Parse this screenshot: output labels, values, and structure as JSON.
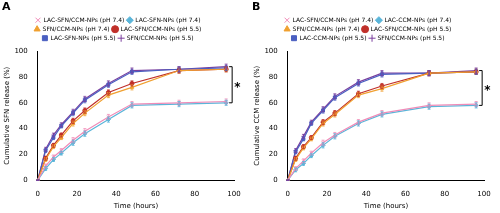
{
  "chart_data": [
    {
      "type": "line",
      "title": "A",
      "x_label": "Time (hours)",
      "y_label": "Cumulative SFN release (%)",
      "x": [
        0,
        4,
        8,
        12,
        18,
        24,
        36,
        48,
        72,
        96
      ],
      "xlim": [
        0,
        100
      ],
      "xticks": [
        0,
        20,
        40,
        60,
        80,
        100
      ],
      "ylim": [
        0,
        100
      ],
      "yticks": [
        0,
        20,
        40,
        60,
        80,
        100
      ],
      "grid": false,
      "legend": "top",
      "annotations": [
        {
          "text": "*"
        }
      ],
      "series": [
        {
          "name": "LAC-SFN/CCM-NPs (pH 7.4)",
          "color": "#f08cb8",
          "marker": "crossRot",
          "values": [
            0,
            11,
            18,
            23,
            31,
            38,
            49,
            59,
            60,
            61
          ],
          "errors": [
            0,
            1.5,
            1.5,
            1.5,
            2,
            2,
            2,
            2,
            2,
            2
          ]
        },
        {
          "name": "LAC-SFN-NPs (pH 7.4)",
          "color": "#5bb5d9",
          "marker": "rectRot",
          "values": [
            0,
            9,
            16,
            21,
            29,
            36,
            47,
            58,
            59,
            60
          ],
          "errors": [
            0,
            1.5,
            1.5,
            1.5,
            2,
            2,
            2,
            2,
            2,
            2
          ]
        },
        {
          "name": "SFN/CCM-NPs (pH 7.4)",
          "color": "#f0a030",
          "marker": "triangle",
          "values": [
            0,
            16,
            26,
            33,
            44,
            52,
            66,
            72,
            85,
            86
          ],
          "errors": [
            0,
            1.5,
            1.5,
            1.5,
            2,
            2,
            2,
            2,
            2,
            2
          ]
        },
        {
          "name": "LAC-SFN/CCM-NPs (pH 5.5)",
          "color": "#c0302a",
          "marker": "circle",
          "values": [
            0,
            17,
            27,
            35,
            46,
            54,
            68,
            75,
            85,
            86
          ],
          "errors": [
            0,
            1.5,
            1.5,
            1.5,
            2,
            2,
            2,
            2,
            2,
            2
          ]
        },
        {
          "name": "LAC-SFN-NPs (pH 5.5)",
          "color": "#4a5fc1",
          "marker": "rect",
          "values": [
            0,
            23,
            33,
            42,
            52,
            62,
            74,
            84,
            86,
            87
          ],
          "errors": [
            0,
            1.5,
            1.5,
            1.5,
            2,
            2,
            2,
            2,
            2,
            2
          ]
        },
        {
          "name": "SFN/CCM-NPs (pH 5.5)",
          "color": "#7b3f9e",
          "marker": "cross",
          "values": [
            0,
            24,
            35,
            43,
            53,
            63,
            75,
            85,
            86,
            88
          ],
          "errors": [
            0,
            1.5,
            1.5,
            1.5,
            2,
            2,
            2,
            2,
            2,
            2
          ]
        }
      ]
    },
    {
      "type": "line",
      "title": "B",
      "x_label": "Time (hours)",
      "y_label": "Cumulative CCM release (%)",
      "x": [
        0,
        4,
        8,
        12,
        18,
        24,
        36,
        48,
        72,
        96
      ],
      "xlim": [
        0,
        100
      ],
      "xticks": [
        0,
        20,
        40,
        60,
        80,
        100
      ],
      "ylim": [
        0,
        100
      ],
      "yticks": [
        0,
        20,
        40,
        60,
        80,
        100
      ],
      "grid": false,
      "legend": "top",
      "annotations": [
        {
          "text": "*"
        }
      ],
      "series": [
        {
          "name": "LAC-SFN/CCM-NPs (pH 7.4)",
          "color": "#f08cb8",
          "marker": "crossRot",
          "values": [
            0,
            9,
            15,
            21,
            29,
            35,
            45,
            52,
            58,
            59
          ],
          "errors": [
            0,
            1.5,
            1.5,
            1.5,
            2,
            2,
            2,
            2,
            2,
            2
          ]
        },
        {
          "name": "LAC-CCM-NPs (pH 7.4)",
          "color": "#5bb5d9",
          "marker": "rectRot",
          "values": [
            0,
            8,
            13,
            19,
            27,
            34,
            44,
            51,
            57,
            58
          ],
          "errors": [
            0,
            1.5,
            1.5,
            1.5,
            2,
            2,
            2,
            2,
            2,
            2
          ]
        },
        {
          "name": "SFN/CCM-NPs (pH 7.4)",
          "color": "#f0a030",
          "marker": "triangle",
          "values": [
            0,
            16,
            25,
            32,
            44,
            51,
            66,
            71,
            83,
            84
          ],
          "errors": [
            0,
            1.5,
            1.5,
            1.5,
            2,
            2,
            2,
            2,
            2,
            2
          ]
        },
        {
          "name": "LAC-SFN/CCM-NPs (pH 5.5)",
          "color": "#c0302a",
          "marker": "circle",
          "values": [
            0,
            17,
            26,
            33,
            45,
            52,
            67,
            73,
            83,
            84
          ],
          "errors": [
            0,
            1.5,
            1.5,
            1.5,
            2,
            2,
            2,
            2,
            2,
            2
          ]
        },
        {
          "name": "LAC-CCM-NPs (pH 5.5)",
          "color": "#4a5fc1",
          "marker": "rect",
          "values": [
            0,
            22,
            32,
            44,
            54,
            64,
            75,
            82,
            83,
            84
          ],
          "errors": [
            0,
            1.5,
            1.5,
            1.5,
            2,
            2,
            2,
            2,
            2,
            2
          ]
        },
        {
          "name": "SFN/CCM-NPs (pH 5.5)",
          "color": "#7b3f9e",
          "marker": "cross",
          "values": [
            0,
            23,
            34,
            45,
            55,
            65,
            76,
            83,
            83,
            85
          ],
          "errors": [
            0,
            1.5,
            1.5,
            1.5,
            2,
            2,
            2,
            2,
            2,
            2
          ]
        }
      ]
    }
  ]
}
